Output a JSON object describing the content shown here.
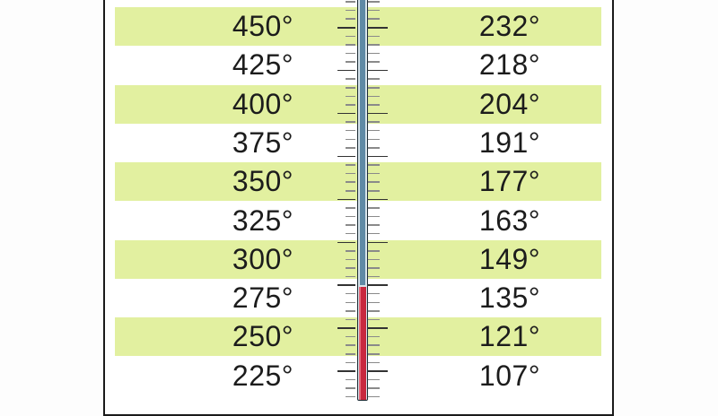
{
  "rows": [
    {
      "fahrenheit": "450°",
      "celsius": "232°"
    },
    {
      "fahrenheit": "425°",
      "celsius": "218°"
    },
    {
      "fahrenheit": "400°",
      "celsius": "204°"
    },
    {
      "fahrenheit": "375°",
      "celsius": "191°"
    },
    {
      "fahrenheit": "350°",
      "celsius": "177°"
    },
    {
      "fahrenheit": "325°",
      "celsius": "163°"
    },
    {
      "fahrenheit": "300°",
      "celsius": "149°"
    },
    {
      "fahrenheit": "275°",
      "celsius": "135°"
    },
    {
      "fahrenheit": "250°",
      "celsius": "121°"
    },
    {
      "fahrenheit": "225°",
      "celsius": "107°"
    }
  ],
  "thermometer": {
    "level_fraction_of_visible": 0.28
  },
  "colors": {
    "row_highlight": "#e2f0a0",
    "mercury_red": "#c8283f",
    "mercury_blue": "#5f8aa5",
    "border": "#1a1a1a"
  }
}
